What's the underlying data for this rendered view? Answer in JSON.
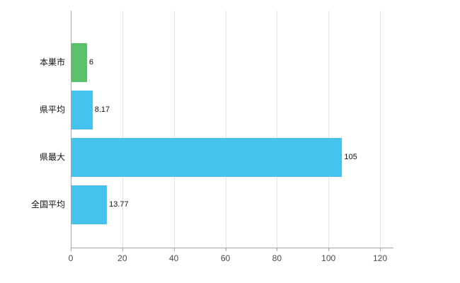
{
  "chart_data": {
    "type": "bar",
    "orientation": "horizontal",
    "title": "",
    "xlabel": "",
    "ylabel": "",
    "categories": [
      "本巣市",
      "県平均",
      "県最大",
      "全国平均"
    ],
    "values": [
      6,
      8.17,
      105,
      13.77
    ],
    "value_labels": [
      "6",
      "8.17",
      "105",
      "13.77"
    ],
    "bar_colors": [
      "#5cbf6a",
      "#45c2ec",
      "#45c2ec",
      "#45c2ec"
    ],
    "xlim": [
      0,
      120
    ],
    "x_ticks": [
      0,
      20,
      40,
      60,
      80,
      100,
      120
    ],
    "x_tick_labels": [
      "0",
      "20",
      "40",
      "60",
      "80",
      "100",
      "120"
    ],
    "grid": true,
    "legend": "none",
    "colors": {
      "axis": "#a6a6a6",
      "gridline": "#e4e4e4",
      "background": "#ffffff",
      "text": "#111111"
    }
  }
}
